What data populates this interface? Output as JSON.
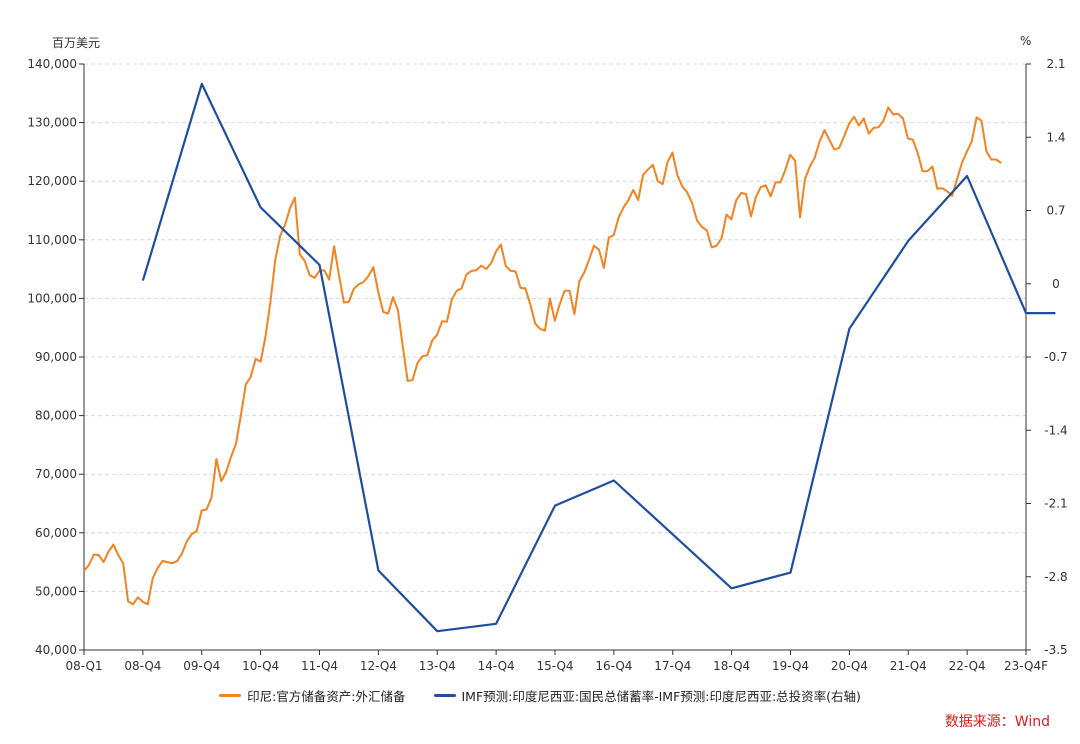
{
  "chart_data": {
    "type": "line",
    "left_axis_unit": "百万美元",
    "right_axis_unit": "%",
    "source": "数据来源：Wind",
    "x_ticks": [
      "08-Q1",
      "08-Q4",
      "09-Q4",
      "10-Q4",
      "11-Q4",
      "12-Q4",
      "13-Q4",
      "14-Q4",
      "15-Q4",
      "16-Q4",
      "17-Q4",
      "18-Q4",
      "19-Q4",
      "20-Q4",
      "21-Q4",
      "22-Q4",
      "23-Q4F"
    ],
    "y_left": {
      "ticks": [
        "40,000",
        "50,000",
        "60,000",
        "70,000",
        "80,000",
        "90,000",
        "100,000",
        "110,000",
        "120,000",
        "130,000",
        "140,000"
      ],
      "ylim": [
        40000,
        140000
      ]
    },
    "y_right": {
      "ticks": [
        "-3.5",
        "-2.8",
        "-2.1",
        "-1.4",
        "-0.7",
        "0",
        "0.7",
        "1.4",
        "2.1"
      ],
      "ylim": [
        -3.5,
        2.1
      ]
    },
    "grid": true,
    "legend_position": "bottom",
    "series": [
      {
        "name": "印尼:官方储备资产:外汇储备",
        "axis": "left",
        "color": "#f58220",
        "x_start": 0,
        "x_step": 0.0833,
        "values": [
          53500,
          54500,
          56300,
          56200,
          55000,
          56800,
          58000,
          56200,
          54800,
          48300,
          47800,
          49000,
          48200,
          47800,
          52200,
          54000,
          55200,
          55000,
          54800,
          55200,
          56500,
          58600,
          59800,
          60300,
          63800,
          64000,
          66000,
          72600,
          68800,
          70400,
          73000,
          75200,
          80100,
          85300,
          86600,
          89700,
          89200,
          93500,
          99400,
          106600,
          110700,
          112600,
          115400,
          117200,
          107500,
          106400,
          104000,
          103500,
          104700,
          104800,
          103200,
          108900,
          104000,
          99300,
          99400,
          101600,
          102400,
          102800,
          103800,
          105300,
          101100,
          97700,
          97400,
          100200,
          98000,
          91800,
          85900,
          86100,
          89000,
          90100,
          90300,
          92800,
          93800,
          96100,
          96000,
          99800,
          101300,
          101700,
          104100,
          104700,
          104800,
          105600,
          105000,
          106000,
          108000,
          109200,
          105500,
          104700,
          104600,
          101800,
          101700,
          99000,
          95700,
          94800,
          94500,
          100000,
          96200,
          99000,
          101300,
          101300,
          97300,
          102900,
          104400,
          106600,
          109000,
          108300,
          105200,
          110400,
          110800,
          113800,
          115500,
          116800,
          118500,
          116800,
          121100,
          122000,
          122800,
          120000,
          119500,
          123300,
          124900,
          121000,
          119100,
          118100,
          116300,
          113300,
          112200,
          111600,
          108700,
          109000,
          110300,
          114300,
          113500,
          116800,
          118000,
          117800,
          114000,
          117300,
          119000,
          119300,
          117400,
          119800,
          119800,
          121900,
          124500,
          123500,
          113800,
          120300,
          122500,
          124000,
          126800,
          128700,
          127000,
          125400,
          125700,
          127700,
          129800,
          131000,
          129500,
          130700,
          128100,
          129100,
          129200,
          130300,
          132600,
          131400,
          131500,
          130700,
          127300,
          127100,
          124800,
          121700,
          121700,
          122500,
          118700,
          118800,
          118300,
          117500,
          120300,
          123100,
          125000,
          126800,
          130900,
          130300,
          125100,
          123700,
          123700,
          123100
        ]
      },
      {
        "name": "IMF预测:印度尼西亚:国民总储蓄率-IMF预测:印度尼西亚:总投资率(右轴)",
        "axis": "right",
        "color": "#1f4e9e",
        "x": [
          1,
          2,
          3,
          4,
          5,
          6,
          7,
          8,
          9,
          11,
          12,
          13,
          14,
          15,
          16,
          16.5
        ],
        "values": [
          0.03,
          1.91,
          0.73,
          0.18,
          -2.74,
          -3.32,
          -3.25,
          -2.12,
          -1.88,
          -2.91,
          -2.76,
          -0.43,
          0.41,
          1.03,
          -0.28,
          -0.28
        ]
      }
    ]
  }
}
